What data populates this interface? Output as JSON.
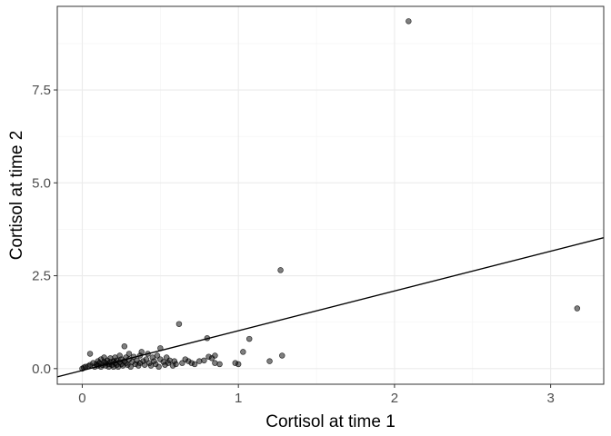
{
  "chart_data": {
    "type": "scatter",
    "title": "",
    "xlabel": "Cortisol at time 1",
    "ylabel": "Cortisol at time 2",
    "xlim": [
      -0.16,
      3.34
    ],
    "ylim": [
      -0.42,
      9.75
    ],
    "x_ticks": [
      0,
      1,
      2,
      3
    ],
    "x_tick_labels": [
      "0",
      "1",
      "2",
      "3"
    ],
    "y_ticks": [
      0,
      2.5,
      5,
      7.5
    ],
    "y_tick_labels": [
      "0.0",
      "2.5",
      "5.0",
      "7.5"
    ],
    "grid": true,
    "legend": "none",
    "point_color": "#000000",
    "point_alpha": 0.5,
    "fit_line": {
      "intercept": -0.05,
      "slope": 1.07,
      "x_range": [
        -0.16,
        3.34
      ]
    },
    "points": [
      [
        0.0,
        0.0
      ],
      [
        0.01,
        0.03
      ],
      [
        0.02,
        0.05
      ],
      [
        0.04,
        0.07
      ],
      [
        0.05,
        0.1
      ],
      [
        0.05,
        0.4
      ],
      [
        0.07,
        0.15
      ],
      [
        0.08,
        0.05
      ],
      [
        0.09,
        0.12
      ],
      [
        0.1,
        0.2
      ],
      [
        0.1,
        0.08
      ],
      [
        0.11,
        0.15
      ],
      [
        0.12,
        0.25
      ],
      [
        0.12,
        0.05
      ],
      [
        0.13,
        0.1
      ],
      [
        0.14,
        0.3
      ],
      [
        0.14,
        0.18
      ],
      [
        0.15,
        0.08
      ],
      [
        0.15,
        0.15
      ],
      [
        0.16,
        0.22
      ],
      [
        0.17,
        0.05
      ],
      [
        0.17,
        0.12
      ],
      [
        0.18,
        0.28
      ],
      [
        0.18,
        0.18
      ],
      [
        0.19,
        0.1
      ],
      [
        0.2,
        0.05
      ],
      [
        0.2,
        0.2
      ],
      [
        0.21,
        0.15
      ],
      [
        0.21,
        0.3
      ],
      [
        0.22,
        0.1
      ],
      [
        0.22,
        0.22
      ],
      [
        0.23,
        0.05
      ],
      [
        0.24,
        0.18
      ],
      [
        0.24,
        0.35
      ],
      [
        0.25,
        0.12
      ],
      [
        0.25,
        0.25
      ],
      [
        0.26,
        0.08
      ],
      [
        0.27,
        0.2
      ],
      [
        0.27,
        0.6
      ],
      [
        0.28,
        0.15
      ],
      [
        0.28,
        0.3
      ],
      [
        0.29,
        0.1
      ],
      [
        0.3,
        0.25
      ],
      [
        0.3,
        0.4
      ],
      [
        0.31,
        0.05
      ],
      [
        0.32,
        0.18
      ],
      [
        0.33,
        0.32
      ],
      [
        0.34,
        0.12
      ],
      [
        0.35,
        0.22
      ],
      [
        0.36,
        0.08
      ],
      [
        0.37,
        0.15
      ],
      [
        0.37,
        0.35
      ],
      [
        0.38,
        0.45
      ],
      [
        0.39,
        0.2
      ],
      [
        0.4,
        0.1
      ],
      [
        0.41,
        0.25
      ],
      [
        0.42,
        0.4
      ],
      [
        0.43,
        0.15
      ],
      [
        0.44,
        0.08
      ],
      [
        0.45,
        0.3
      ],
      [
        0.46,
        0.2
      ],
      [
        0.47,
        0.12
      ],
      [
        0.48,
        0.35
      ],
      [
        0.49,
        0.05
      ],
      [
        0.5,
        0.25
      ],
      [
        0.5,
        0.55
      ],
      [
        0.52,
        0.18
      ],
      [
        0.53,
        0.1
      ],
      [
        0.54,
        0.3
      ],
      [
        0.55,
        0.15
      ],
      [
        0.56,
        0.22
      ],
      [
        0.58,
        0.08
      ],
      [
        0.59,
        0.2
      ],
      [
        0.6,
        0.12
      ],
      [
        0.62,
        1.2
      ],
      [
        0.64,
        0.15
      ],
      [
        0.66,
        0.25
      ],
      [
        0.68,
        0.2
      ],
      [
        0.7,
        0.15
      ],
      [
        0.72,
        0.12
      ],
      [
        0.75,
        0.2
      ],
      [
        0.78,
        0.22
      ],
      [
        0.8,
        0.82
      ],
      [
        0.81,
        0.32
      ],
      [
        0.83,
        0.28
      ],
      [
        0.85,
        0.35
      ],
      [
        0.85,
        0.15
      ],
      [
        0.88,
        0.12
      ],
      [
        0.98,
        0.15
      ],
      [
        1.0,
        0.12
      ],
      [
        1.03,
        0.45
      ],
      [
        1.07,
        0.8
      ],
      [
        1.2,
        0.2
      ],
      [
        1.27,
        2.65
      ],
      [
        1.28,
        0.35
      ],
      [
        2.09,
        9.35
      ],
      [
        3.17,
        1.62
      ]
    ]
  }
}
